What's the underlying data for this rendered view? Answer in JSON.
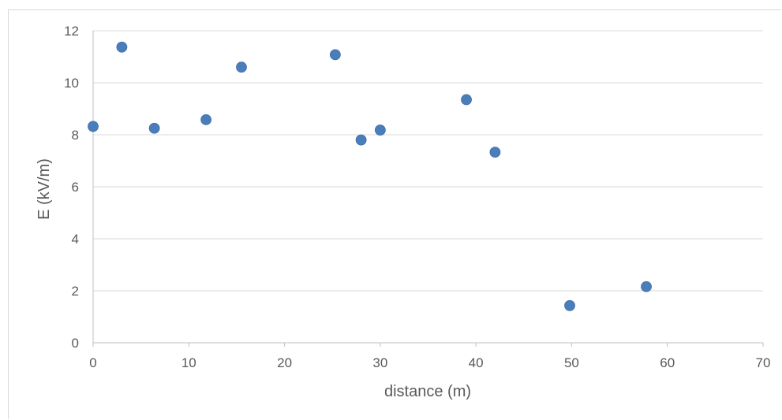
{
  "chart_data": {
    "type": "scatter",
    "title": "",
    "xlabel": "distance  (m)",
    "ylabel": "E (kV/m)",
    "xlim": [
      0,
      70
    ],
    "ylim": [
      0,
      12
    ],
    "xticks": [
      0,
      10,
      20,
      30,
      40,
      50,
      60,
      70
    ],
    "yticks": [
      0,
      2,
      4,
      6,
      8,
      10,
      12
    ],
    "grid": "horizontal",
    "legend": "none",
    "colors": {
      "marker": "#4a7ebb",
      "grid": "#d9d9d9",
      "axis": "#bfbfbf",
      "text": "#595959"
    },
    "series": [
      {
        "x": [
          0,
          3,
          6.4,
          11.8,
          15.5,
          25.3,
          28,
          30,
          39,
          42,
          49.8,
          57.8
        ],
        "y": [
          8.32,
          11.37,
          8.25,
          8.58,
          10.6,
          11.08,
          7.8,
          8.18,
          9.35,
          7.33,
          1.43,
          2.16
        ]
      }
    ]
  }
}
